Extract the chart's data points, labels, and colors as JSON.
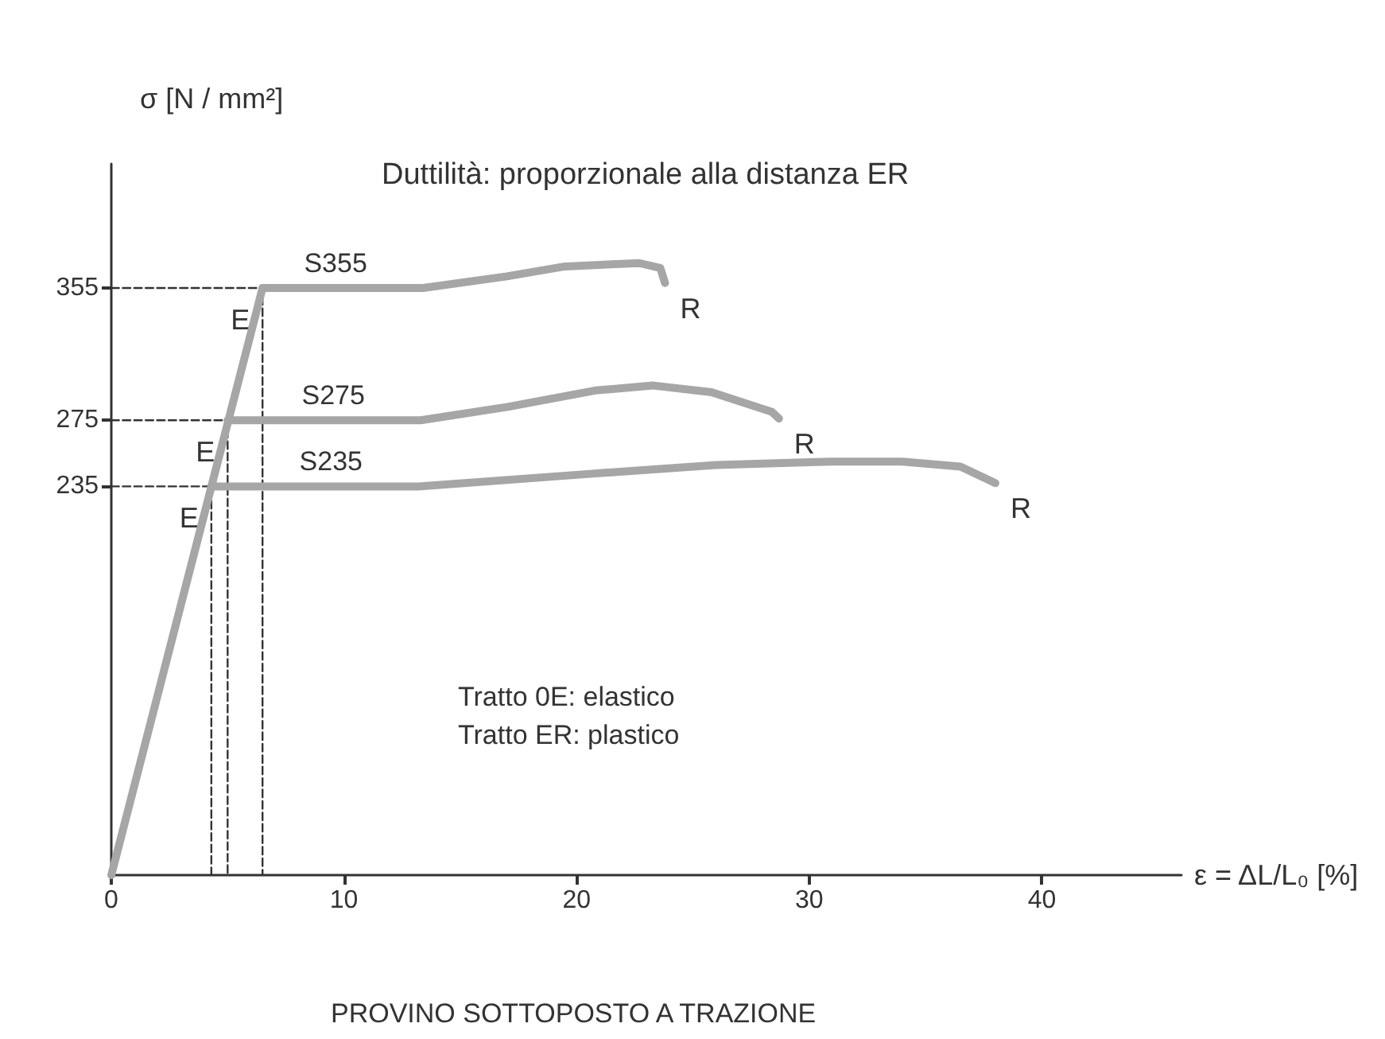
{
  "chart_data": {
    "type": "line",
    "xlabel": "ε = ΔL/L₀ [%]",
    "ylabel": "σ [N / mm²]",
    "xlim": [
      0,
      46
    ],
    "ylim": [
      0,
      430
    ],
    "xticks": [
      0,
      10,
      20,
      30,
      40
    ],
    "yticks": [
      235,
      275,
      355
    ],
    "grid": false,
    "legend": false,
    "marker": "none",
    "series": [
      {
        "name": "S355",
        "color": "#a6a6a6",
        "x": [
          6.5,
          13.4,
          17,
          19.5,
          22.7,
          23.6,
          23.8
        ],
        "values": [
          355,
          355,
          362,
          368,
          370,
          367,
          358
        ]
      },
      {
        "name": "S275",
        "color": "#a6a6a6",
        "x": [
          5,
          13.3,
          17,
          20.8,
          23.3,
          25.8,
          28.4,
          28.7
        ],
        "values": [
          275,
          275,
          283,
          293,
          296,
          292,
          280,
          276
        ]
      },
      {
        "name": "S235",
        "color": "#a6a6a6",
        "x": [
          4.3,
          13.2,
          20,
          26,
          31,
          34,
          36.5,
          38
        ],
        "values": [
          235,
          235,
          242,
          248,
          250,
          250,
          247,
          237
        ]
      },
      {
        "color": "#a6a6a6",
        "x": [
          0,
          6.5
        ],
        "values": [
          0,
          355
        ]
      },
      {
        "color": "#333333",
        "line_style": "dashed",
        "x": [
          0,
          6.5,
          6.5
        ],
        "values": [
          355,
          355,
          0
        ]
      },
      {
        "color": "#333333",
        "line_style": "dashed",
        "x": [
          0,
          5,
          5
        ],
        "values": [
          275,
          275,
          0
        ]
      },
      {
        "color": "#333333",
        "line_style": "dashed",
        "x": [
          0,
          4.3,
          4.3
        ],
        "values": [
          235,
          235,
          0
        ]
      }
    ],
    "annotations": [
      "Duttilità: proporzionale alla distanza ER",
      "Tratto 0E: elastico\nTratto ER: plastico",
      "PROVINO SOTTOPOSTO A TRAZIONE",
      {
        "text": "E",
        "x": 6.5,
        "y": 355
      },
      {
        "text": "E",
        "x": 5,
        "y": 275
      },
      {
        "text": "E",
        "x": 4.3,
        "y": 235
      },
      {
        "text": "R",
        "x": 23.8,
        "y": 358
      },
      {
        "text": "R",
        "x": 28.7,
        "y": 276
      },
      {
        "text": "R",
        "x": 38,
        "y": 237
      }
    ]
  }
}
